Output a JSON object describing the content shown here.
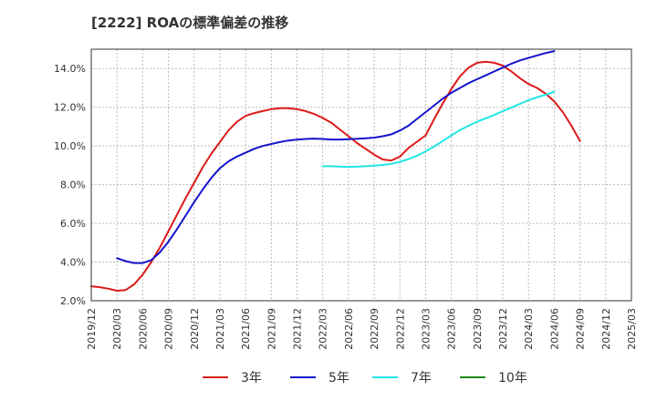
{
  "chart_data": {
    "type": "line",
    "title": "[2222]  ROAの標準偏差の推移",
    "xlabel": "",
    "ylabel": "",
    "x_ticks": [
      "2019/12",
      "2020/03",
      "2020/06",
      "2020/09",
      "2020/12",
      "2021/03",
      "2021/06",
      "2021/09",
      "2021/12",
      "2022/03",
      "2022/06",
      "2022/09",
      "2022/12",
      "2023/03",
      "2023/06",
      "2023/09",
      "2023/12",
      "2024/03",
      "2024/06",
      "2024/09",
      "2024/12",
      "2025/03"
    ],
    "y_ticks": [
      "2.0%",
      "4.0%",
      "6.0%",
      "8.0%",
      "10.0%",
      "12.0%",
      "14.0%"
    ],
    "ylim": [
      2.0,
      15.0
    ],
    "grid": true,
    "legend_position": "bottom",
    "series": [
      {
        "name": "3年",
        "color": "#dd1a1a",
        "values": [
          [
            "2019/12",
            2.75
          ],
          [
            "2020/01",
            2.7
          ],
          [
            "2020/02",
            2.62
          ],
          [
            "2020/03",
            2.52
          ],
          [
            "2020/04",
            2.55
          ],
          [
            "2020/05",
            2.85
          ],
          [
            "2020/06",
            3.35
          ],
          [
            "2020/07",
            4.0
          ],
          [
            "2020/08",
            4.75
          ],
          [
            "2020/09",
            5.6
          ],
          [
            "2020/10",
            6.45
          ],
          [
            "2020/11",
            7.3
          ],
          [
            "2020/12",
            8.1
          ],
          [
            "2021/01",
            8.9
          ],
          [
            "2021/02",
            9.6
          ],
          [
            "2021/03",
            10.2
          ],
          [
            "2021/04",
            10.8
          ],
          [
            "2021/05",
            11.25
          ],
          [
            "2021/06",
            11.55
          ],
          [
            "2021/07",
            11.7
          ],
          [
            "2021/08",
            11.8
          ],
          [
            "2021/09",
            11.9
          ],
          [
            "2021/10",
            11.95
          ],
          [
            "2021/11",
            11.95
          ],
          [
            "2021/12",
            11.9
          ],
          [
            "2022/01",
            11.8
          ],
          [
            "2022/02",
            11.65
          ],
          [
            "2022/03",
            11.45
          ],
          [
            "2022/04",
            11.2
          ],
          [
            "2022/05",
            10.85
          ],
          [
            "2022/06",
            10.5
          ],
          [
            "2022/07",
            10.15
          ],
          [
            "2022/08",
            9.85
          ],
          [
            "2022/09",
            9.55
          ],
          [
            "2022/10",
            9.3
          ],
          [
            "2022/11",
            9.25
          ],
          [
            "2022/12",
            9.45
          ],
          [
            "2022/13",
            9.9
          ],
          [
            "2023/03",
            10.55
          ],
          [
            "2023/04",
            11.4
          ],
          [
            "2023/05",
            12.2
          ],
          [
            "2023/06",
            12.95
          ],
          [
            "2023/07",
            13.6
          ],
          [
            "2023/08",
            14.05
          ],
          [
            "2023/09",
            14.3
          ],
          [
            "2023/10",
            14.35
          ],
          [
            "2023/11",
            14.3
          ],
          [
            "2023/12",
            14.15
          ],
          [
            "2024/01",
            13.85
          ],
          [
            "2024/02",
            13.5
          ],
          [
            "2024/03",
            13.2
          ],
          [
            "2024/04",
            13.0
          ],
          [
            "2024/05",
            12.7
          ],
          [
            "2024/06",
            12.3
          ],
          [
            "2024/07",
            11.75
          ],
          [
            "2024/08",
            11.05
          ],
          [
            "2024/09",
            10.25
          ]
        ]
      },
      {
        "name": "5年",
        "color": "#1414cc",
        "values": [
          [
            "2020/03",
            4.2
          ],
          [
            "2020/04",
            4.05
          ],
          [
            "2020/05",
            3.95
          ],
          [
            "2020/06",
            3.95
          ],
          [
            "2020/07",
            4.1
          ],
          [
            "2020/08",
            4.5
          ],
          [
            "2020/09",
            5.05
          ],
          [
            "2020/10",
            5.7
          ],
          [
            "2020/11",
            6.4
          ],
          [
            "2020/12",
            7.1
          ],
          [
            "2021/01",
            7.75
          ],
          [
            "2021/02",
            8.35
          ],
          [
            "2021/03",
            8.85
          ],
          [
            "2021/04",
            9.2
          ],
          [
            "2021/05",
            9.45
          ],
          [
            "2021/06",
            9.65
          ],
          [
            "2021/07",
            9.85
          ],
          [
            "2021/08",
            10.0
          ],
          [
            "2021/09",
            10.1
          ],
          [
            "2021/10",
            10.2
          ],
          [
            "2021/11",
            10.28
          ],
          [
            "2021/12",
            10.33
          ],
          [
            "2022/01",
            10.36
          ],
          [
            "2022/02",
            10.38
          ],
          [
            "2022/03",
            10.36
          ],
          [
            "2022/04",
            10.33
          ],
          [
            "2022/05",
            10.33
          ],
          [
            "2022/06",
            10.35
          ],
          [
            "2022/07",
            10.37
          ],
          [
            "2022/08",
            10.4
          ],
          [
            "2022/09",
            10.43
          ],
          [
            "2022/10",
            10.5
          ],
          [
            "2022/11",
            10.6
          ],
          [
            "2022/12",
            10.8
          ],
          [
            "2023/01",
            11.05
          ],
          [
            "2023/02",
            11.4
          ],
          [
            "2023/03",
            11.75
          ],
          [
            "2023/04",
            12.1
          ],
          [
            "2023/05",
            12.45
          ],
          [
            "2023/06",
            12.75
          ],
          [
            "2023/07",
            13.0
          ],
          [
            "2023/08",
            13.25
          ],
          [
            "2023/09",
            13.45
          ],
          [
            "2023/10",
            13.65
          ],
          [
            "2023/11",
            13.85
          ],
          [
            "2023/12",
            14.05
          ],
          [
            "2024/01",
            14.25
          ],
          [
            "2024/02",
            14.42
          ],
          [
            "2024/03",
            14.55
          ],
          [
            "2024/04",
            14.68
          ],
          [
            "2024/05",
            14.8
          ],
          [
            "2024/06",
            14.9
          ]
        ]
      },
      {
        "name": "7年",
        "color": "#22e6e6",
        "values": [
          [
            "2022/03",
            8.95
          ],
          [
            "2022/04",
            8.95
          ],
          [
            "2022/05",
            8.93
          ],
          [
            "2022/06",
            8.92
          ],
          [
            "2022/07",
            8.93
          ],
          [
            "2022/08",
            8.95
          ],
          [
            "2022/09",
            8.98
          ],
          [
            "2022/10",
            9.02
          ],
          [
            "2022/11",
            9.08
          ],
          [
            "2022/12",
            9.18
          ],
          [
            "2023/01",
            9.32
          ],
          [
            "2023/02",
            9.5
          ],
          [
            "2023/03",
            9.72
          ],
          [
            "2023/04",
            9.98
          ],
          [
            "2023/05",
            10.25
          ],
          [
            "2023/06",
            10.55
          ],
          [
            "2023/07",
            10.82
          ],
          [
            "2023/08",
            11.05
          ],
          [
            "2023/09",
            11.25
          ],
          [
            "2023/10",
            11.43
          ],
          [
            "2023/11",
            11.6
          ],
          [
            "2023/12",
            11.8
          ],
          [
            "2024/01",
            11.98
          ],
          [
            "2024/02",
            12.18
          ],
          [
            "2024/03",
            12.36
          ],
          [
            "2024/04",
            12.52
          ],
          [
            "2024/05",
            12.65
          ],
          [
            "2024/06",
            12.8
          ]
        ]
      },
      {
        "name": "10年",
        "color": "#1a8a1a",
        "values": []
      }
    ]
  }
}
